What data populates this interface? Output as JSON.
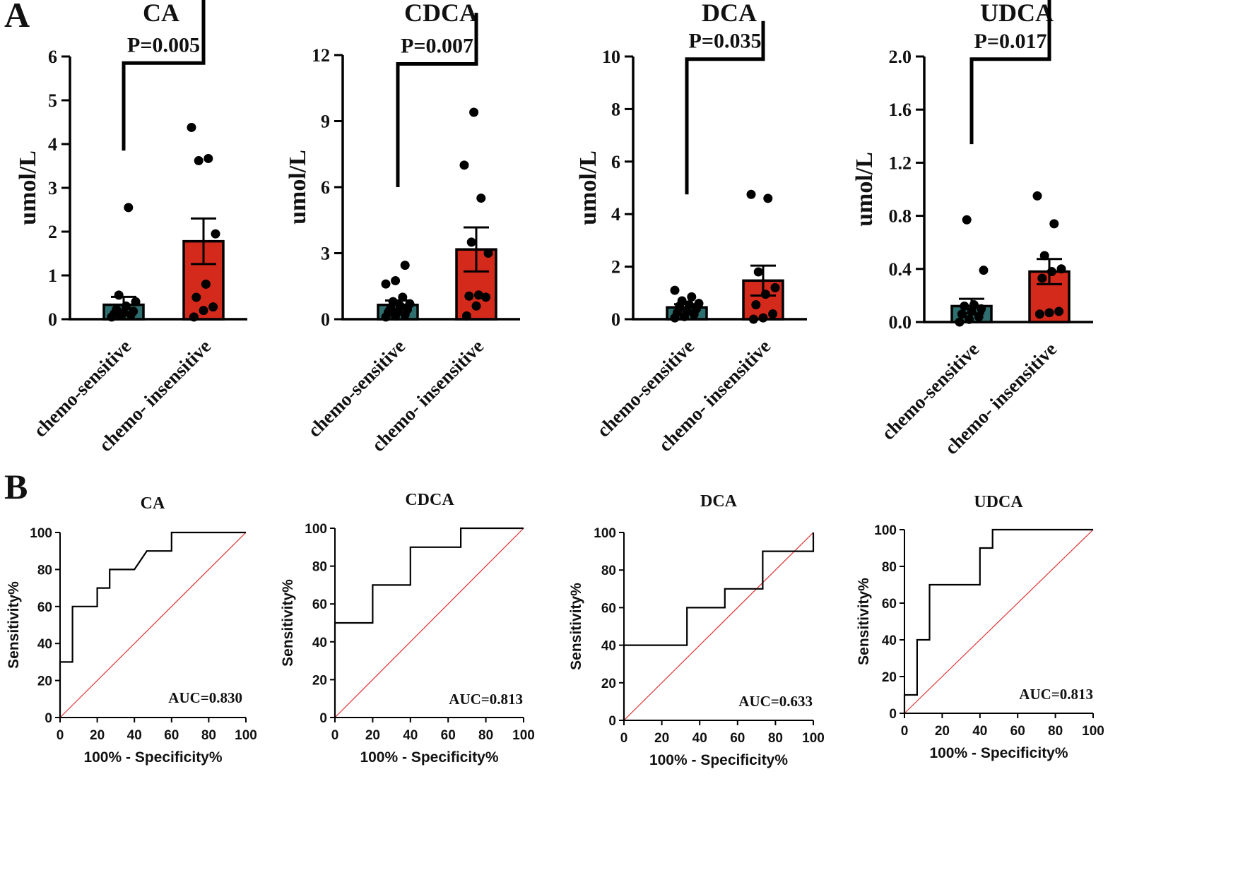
{
  "panels": {
    "a_label": "A",
    "b_label": "B"
  },
  "colors": {
    "sensitive": "#2f6f6f",
    "insensitive": "#d42a1c",
    "axis": "#000000",
    "dot": "#000000",
    "roc": "#000000",
    "diagonal": "#e03030"
  },
  "chart_data": [
    {
      "type": "bar",
      "panel": "A",
      "title": "CA",
      "ylabel": "umol/L",
      "categories": [
        "chemo-sensitive",
        "chemo- insensitive"
      ],
      "yticks": [
        "0",
        "1",
        "2",
        "3",
        "4",
        "5",
        "6"
      ],
      "ylim": [
        0,
        6
      ],
      "means": [
        0.33,
        1.78
      ],
      "sem": [
        0.18,
        0.52
      ],
      "points": [
        [
          0.05,
          0.08,
          0.1,
          0.12,
          0.15,
          0.18,
          0.22,
          0.3,
          0.4,
          0.55,
          2.55
        ],
        [
          0.05,
          0.2,
          0.28,
          0.5,
          0.8,
          1.95,
          3.62,
          3.67,
          4.38
        ]
      ],
      "bracket": [
        3.85,
        5.85
      ],
      "pvalue": "P=0.005"
    },
    {
      "type": "bar",
      "panel": "A",
      "title": "CDCA",
      "ylabel": "umol/L",
      "categories": [
        "chemo-sensitive",
        "chemo- insensitive"
      ],
      "yticks": [
        "0",
        "3",
        "6",
        "9",
        "12"
      ],
      "ylim": [
        0,
        12
      ],
      "means": [
        0.65,
        3.17
      ],
      "sem": [
        0.2,
        1.0
      ],
      "points": [
        [
          0.1,
          0.15,
          0.2,
          0.3,
          0.35,
          0.45,
          0.5,
          0.6,
          0.7,
          0.8,
          1.0,
          1.6,
          1.75,
          2.45
        ],
        [
          0.15,
          0.6,
          1.0,
          1.05,
          1.1,
          3.0,
          3.5,
          5.5,
          7.0,
          9.4
        ]
      ],
      "bracket": [
        6.0,
        11.6
      ],
      "pvalue": "P=0.007"
    },
    {
      "type": "bar",
      "panel": "A",
      "title": "DCA",
      "ylabel": "umol/L",
      "categories": [
        "chemo-sensitive",
        "chemo- insensitive"
      ],
      "yticks": [
        "0",
        "2",
        "4",
        "6",
        "8",
        "10"
      ],
      "ylim": [
        0,
        10
      ],
      "means": [
        0.45,
        1.47
      ],
      "sem": [
        0.12,
        0.57
      ],
      "points": [
        [
          0.05,
          0.1,
          0.18,
          0.25,
          0.3,
          0.4,
          0.5,
          0.55,
          0.6,
          0.7,
          0.85,
          1.1
        ],
        [
          0.0,
          0.05,
          0.2,
          0.55,
          0.95,
          1.2,
          1.8,
          4.6,
          4.75
        ]
      ],
      "bracket": [
        4.75,
        9.9
      ],
      "pvalue": "P=0.035"
    },
    {
      "type": "bar",
      "panel": "A",
      "title": "UDCA",
      "ylabel": "umol/L",
      "categories": [
        "chemo-sensitive",
        "chemo- insensitive"
      ],
      "yticks": [
        "0.0",
        "0.4",
        "0.8",
        "1.2",
        "1.6",
        "2.0"
      ],
      "ylim": [
        0,
        2.0
      ],
      "means": [
        0.12,
        0.38
      ],
      "sem": [
        0.055,
        0.095
      ],
      "points": [
        [
          0.0,
          0.02,
          0.04,
          0.06,
          0.08,
          0.1,
          0.12,
          0.13,
          0.39,
          0.77
        ],
        [
          0.06,
          0.07,
          0.08,
          0.33,
          0.38,
          0.4,
          0.5,
          0.74,
          0.95
        ]
      ],
      "bracket": [
        1.34,
        1.98
      ],
      "pvalue": "P=0.017"
    },
    {
      "type": "line",
      "panel": "B",
      "title": "CA",
      "xlabel": "100% - Specificity%",
      "ylabel": "Sensitivity%",
      "xticks": [
        "0",
        "20",
        "40",
        "60",
        "80",
        "100"
      ],
      "yticks": [
        "0",
        "20",
        "40",
        "60",
        "80",
        "100"
      ],
      "xlim": [
        0,
        100
      ],
      "ylim": [
        0,
        100
      ],
      "x": [
        0,
        0,
        6.7,
        6.7,
        20,
        20,
        26.7,
        26.7,
        33.3,
        40,
        46.7,
        60,
        60,
        100
      ],
      "y": [
        0,
        30,
        30,
        60,
        60,
        70,
        70,
        80,
        80,
        80,
        90,
        90,
        100,
        100
      ],
      "auc": "AUC=0.830"
    },
    {
      "type": "line",
      "panel": "B",
      "title": "CDCA",
      "xlabel": "100% - Specificity%",
      "ylabel": "Sensitivity%",
      "xticks": [
        "0",
        "20",
        "40",
        "60",
        "80",
        "100"
      ],
      "yticks": [
        "0",
        "20",
        "40",
        "60",
        "80",
        "100"
      ],
      "xlim": [
        0,
        100
      ],
      "ylim": [
        0,
        100
      ],
      "x": [
        0,
        0,
        20,
        20,
        40,
        40,
        66.7,
        66.7,
        100
      ],
      "y": [
        0,
        50,
        50,
        70,
        70,
        90,
        90,
        100,
        100
      ],
      "auc": "AUC=0.813"
    },
    {
      "type": "line",
      "panel": "B",
      "title": "DCA",
      "xlabel": "100% - Specificity%",
      "ylabel": "Sensitivity%",
      "xticks": [
        "0",
        "20",
        "40",
        "60",
        "80",
        "100"
      ],
      "yticks": [
        "0",
        "20",
        "40",
        "60",
        "80",
        "100"
      ],
      "xlim": [
        0,
        100
      ],
      "ylim": [
        0,
        100
      ],
      "x": [
        0,
        0,
        33.3,
        33.3,
        53.3,
        53.3,
        73.3,
        73.3,
        100,
        100
      ],
      "y": [
        0,
        40,
        40,
        60,
        60,
        70,
        70,
        90,
        90,
        100
      ],
      "auc": "AUC=0.633"
    },
    {
      "type": "line",
      "panel": "B",
      "title": "UDCA",
      "xlabel": "100% - Specificity%",
      "ylabel": "Sensitivity%",
      "xticks": [
        "0",
        "20",
        "40",
        "60",
        "80",
        "100"
      ],
      "yticks": [
        "0",
        "20",
        "40",
        "60",
        "80",
        "100"
      ],
      "xlim": [
        0,
        100
      ],
      "ylim": [
        0,
        100
      ],
      "x": [
        0,
        0,
        6.7,
        6.7,
        13.3,
        13.3,
        40,
        40,
        46.7,
        46.7,
        100
      ],
      "y": [
        0,
        10,
        10,
        40,
        40,
        70,
        70,
        90,
        90,
        100,
        100
      ],
      "auc": "AUC=0.813"
    }
  ]
}
